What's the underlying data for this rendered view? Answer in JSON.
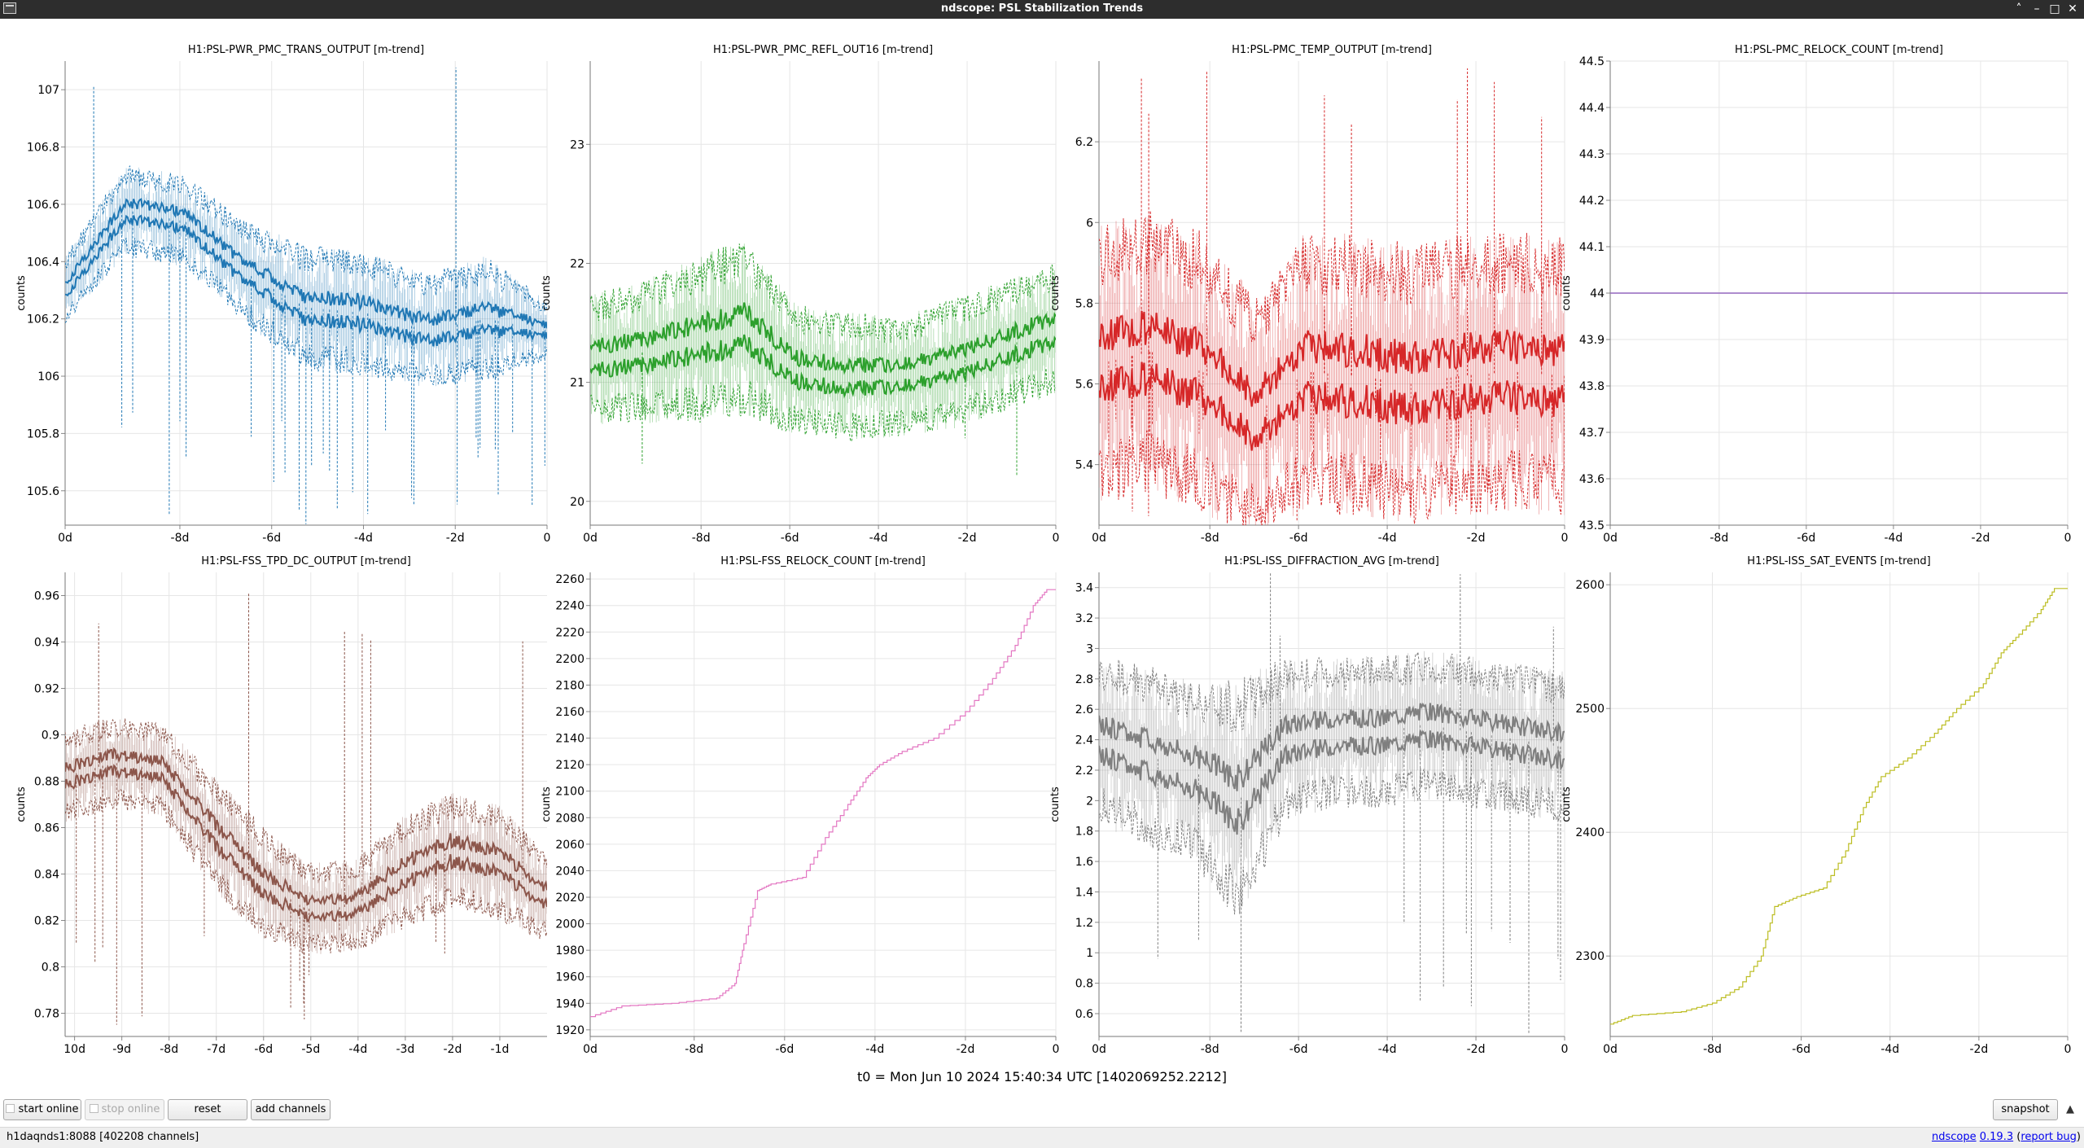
{
  "window": {
    "title": "ndscope: PSL Stabilization Trends",
    "buttons": [
      "˄",
      "–",
      "□",
      "✕"
    ]
  },
  "plots": [
    {
      "title": "H1:PSL-PWR_PMC_TRANS_OUTPUT [m-trend]",
      "ylabel": "counts",
      "color": "#1f77b4",
      "yrange": [
        105.48,
        107.1
      ],
      "yticks": [
        "105.6",
        "105.8",
        "106",
        "106.2",
        "106.4",
        "106.6",
        "106.8",
        "107"
      ],
      "xrange": [
        -10.5,
        0
      ],
      "xticks": [
        "0d",
        "-8d",
        "-6d",
        "-4d",
        "-2d",
        "0"
      ],
      "kind": "band",
      "levels": [
        106.3,
        106.58,
        106.54,
        106.36,
        106.24,
        106.22,
        106.16,
        106.2,
        106.16
      ],
      "spread": [
        0.12,
        0.16,
        0.16,
        0.18,
        0.22,
        0.22,
        0.2,
        0.22,
        0.1
      ],
      "spikes": 0.42
    },
    {
      "title": "H1:PSL-PWR_PMC_REFL_OUT16 [m-trend]",
      "ylabel": "counts",
      "color": "#2ca02c",
      "yrange": [
        19.8,
        23.7
      ],
      "yticks": [
        "20",
        "21",
        "22",
        "23"
      ],
      "xrange": [
        -10.5,
        0
      ],
      "xticks": [
        "0d",
        "-8d",
        "-6d",
        "-4d",
        "-2d",
        "0"
      ],
      "kind": "band",
      "levels": [
        21.2,
        21.25,
        21.35,
        21.45,
        21.1,
        21.05,
        21.05,
        21.15,
        21.3,
        21.45
      ],
      "spread": [
        0.55,
        0.6,
        0.7,
        0.75,
        0.55,
        0.55,
        0.5,
        0.55,
        0.55,
        0.55
      ],
      "spikes": 0.05
    },
    {
      "title": "H1:PSL-PMC_TEMP_OUTPUT [m-trend]",
      "ylabel": "counts",
      "color": "#d62728",
      "yrange": [
        5.25,
        6.4
      ],
      "yticks": [
        "5.4",
        "5.6",
        "5.8",
        "6",
        "6.2"
      ],
      "xrange": [
        -10.5,
        0
      ],
      "xticks": [
        "0d",
        "-8d",
        "-6d",
        "-4d",
        "-2d",
        "0"
      ],
      "kind": "band",
      "levels": [
        5.65,
        5.68,
        5.63,
        5.52,
        5.63,
        5.62,
        5.6,
        5.62,
        5.63,
        5.62
      ],
      "spread": [
        0.35,
        0.35,
        0.35,
        0.3,
        0.35,
        0.35,
        0.35,
        0.35,
        0.35,
        0.35
      ],
      "spikes": 0.5
    },
    {
      "title": "H1:PSL-PMC_RELOCK_COUNT [m-trend]",
      "ylabel": "counts",
      "color": "#9467bd",
      "yrange": [
        43.5,
        44.5
      ],
      "yticks": [
        "43.5",
        "43.6",
        "43.7",
        "43.8",
        "43.9",
        "44",
        "44.1",
        "44.2",
        "44.3",
        "44.4",
        "44.5"
      ],
      "xrange": [
        -10.5,
        0
      ],
      "xticks": [
        "0d",
        "-8d",
        "-6d",
        "-4d",
        "-2d",
        "0"
      ],
      "kind": "flat",
      "levels": [
        44
      ]
    },
    {
      "title": "H1:PSL-FSS_TPD_DC_OUTPUT [m-trend]",
      "ylabel": "counts",
      "color": "#8c564b",
      "yrange": [
        0.77,
        0.97
      ],
      "yticks": [
        "0.78",
        "0.8",
        "0.82",
        "0.84",
        "0.86",
        "0.88",
        "0.9",
        "0.92",
        "0.94",
        "0.96"
      ],
      "xrange": [
        -10.2,
        0
      ],
      "xticks": [
        "10d",
        "-9d",
        "-8d",
        "-7d",
        "-6d",
        "-5d",
        "-4d",
        "-3d",
        "-2d",
        "-1d"
      ],
      "kind": "band",
      "levels": [
        0.882,
        0.888,
        0.885,
        0.86,
        0.838,
        0.825,
        0.826,
        0.84,
        0.85,
        0.845,
        0.83
      ],
      "spread": [
        0.02,
        0.02,
        0.02,
        0.025,
        0.025,
        0.02,
        0.02,
        0.025,
        0.025,
        0.025,
        0.02
      ],
      "spikes": 0.28
    },
    {
      "title": "H1:PSL-FSS_RELOCK_COUNT [m-trend]",
      "ylabel": "counts",
      "color": "#e377c2",
      "yrange": [
        1915,
        2265
      ],
      "yticks": [
        "1920",
        "1940",
        "1960",
        "1980",
        "2000",
        "2020",
        "2040",
        "2060",
        "2080",
        "2100",
        "2120",
        "2140",
        "2160",
        "2180",
        "2200",
        "2220",
        "2240",
        "2260"
      ],
      "xrange": [
        -10.3,
        0
      ],
      "xticks": [
        "0d",
        "-8d",
        "-6d",
        "-4d",
        "-2d",
        "0"
      ],
      "kind": "steps",
      "points": [
        [
          -10.3,
          1930
        ],
        [
          -9.6,
          1938
        ],
        [
          -8.5,
          1940
        ],
        [
          -7.5,
          1944
        ],
        [
          -7.1,
          1955
        ],
        [
          -6.9,
          1985
        ],
        [
          -6.6,
          2025
        ],
        [
          -6.3,
          2030
        ],
        [
          -5.6,
          2035
        ],
        [
          -5.1,
          2065
        ],
        [
          -4.6,
          2090
        ],
        [
          -4.2,
          2110
        ],
        [
          -3.9,
          2120
        ],
        [
          -3.4,
          2130
        ],
        [
          -2.7,
          2140
        ],
        [
          -2.0,
          2160
        ],
        [
          -1.4,
          2185
        ],
        [
          -0.9,
          2210
        ],
        [
          -0.5,
          2240
        ],
        [
          -0.2,
          2252
        ],
        [
          0,
          2252
        ]
      ]
    },
    {
      "title": "H1:PSL-ISS_DIFFRACTION_AVG [m-trend]",
      "ylabel": "counts",
      "color": "#7f7f7f",
      "yrange": [
        0.45,
        3.5
      ],
      "yticks": [
        "0.6",
        "0.8",
        "1",
        "1.2",
        "1.4",
        "1.6",
        "1.8",
        "2",
        "2.2",
        "2.4",
        "2.6",
        "2.8",
        "3",
        "3.2",
        "3.4"
      ],
      "xrange": [
        -10.5,
        0
      ],
      "xticks": [
        "0d",
        "-8d",
        "-6d",
        "-4d",
        "-2d",
        "0"
      ],
      "kind": "band",
      "levels": [
        2.4,
        2.3,
        2.2,
        2.0,
        2.4,
        2.45,
        2.45,
        2.5,
        2.45,
        2.4,
        2.35
      ],
      "spread": [
        0.55,
        0.6,
        0.6,
        0.8,
        0.55,
        0.5,
        0.5,
        0.5,
        0.5,
        0.5,
        0.5
      ],
      "spikes": 0.25
    },
    {
      "title": "H1:PSL-ISS_SAT_EVENTS [m-trend]",
      "ylabel": "counts",
      "color": "#bcbd22",
      "yrange": [
        2235,
        2610
      ],
      "yticks": [
        "2300",
        "2400",
        "2500",
        "2600"
      ],
      "xrange": [
        -10.3,
        0
      ],
      "xticks": [
        "0d",
        "-8d",
        "-6d",
        "-4d",
        "-2d",
        "0"
      ],
      "kind": "steps",
      "points": [
        [
          -10.3,
          2245
        ],
        [
          -9.8,
          2252
        ],
        [
          -8.7,
          2255
        ],
        [
          -8.0,
          2262
        ],
        [
          -7.4,
          2275
        ],
        [
          -6.9,
          2300
        ],
        [
          -6.6,
          2340
        ],
        [
          -6.1,
          2348
        ],
        [
          -5.5,
          2355
        ],
        [
          -5.0,
          2385
        ],
        [
          -4.6,
          2420
        ],
        [
          -4.2,
          2445
        ],
        [
          -3.6,
          2460
        ],
        [
          -3.0,
          2480
        ],
        [
          -2.5,
          2500
        ],
        [
          -1.9,
          2520
        ],
        [
          -1.5,
          2545
        ],
        [
          -1.1,
          2560
        ],
        [
          -0.6,
          2580
        ],
        [
          -0.3,
          2597
        ],
        [
          0,
          2597
        ]
      ]
    }
  ],
  "t0_label": "t0 = Mon Jun 10 2024 15:40:34 UTC [1402069252.2212]",
  "controls": {
    "start_online": "start online",
    "stop_online": "stop online",
    "reset": "reset",
    "add_channels": "add channels",
    "snapshot": "snapshot",
    "expand": "▲"
  },
  "status": {
    "server": "h1daqnds1:8088  [402208 channels]",
    "app": "ndscope",
    "version": "0.19.3",
    "report_open": "(",
    "report": "report bug",
    "report_close": ")"
  }
}
